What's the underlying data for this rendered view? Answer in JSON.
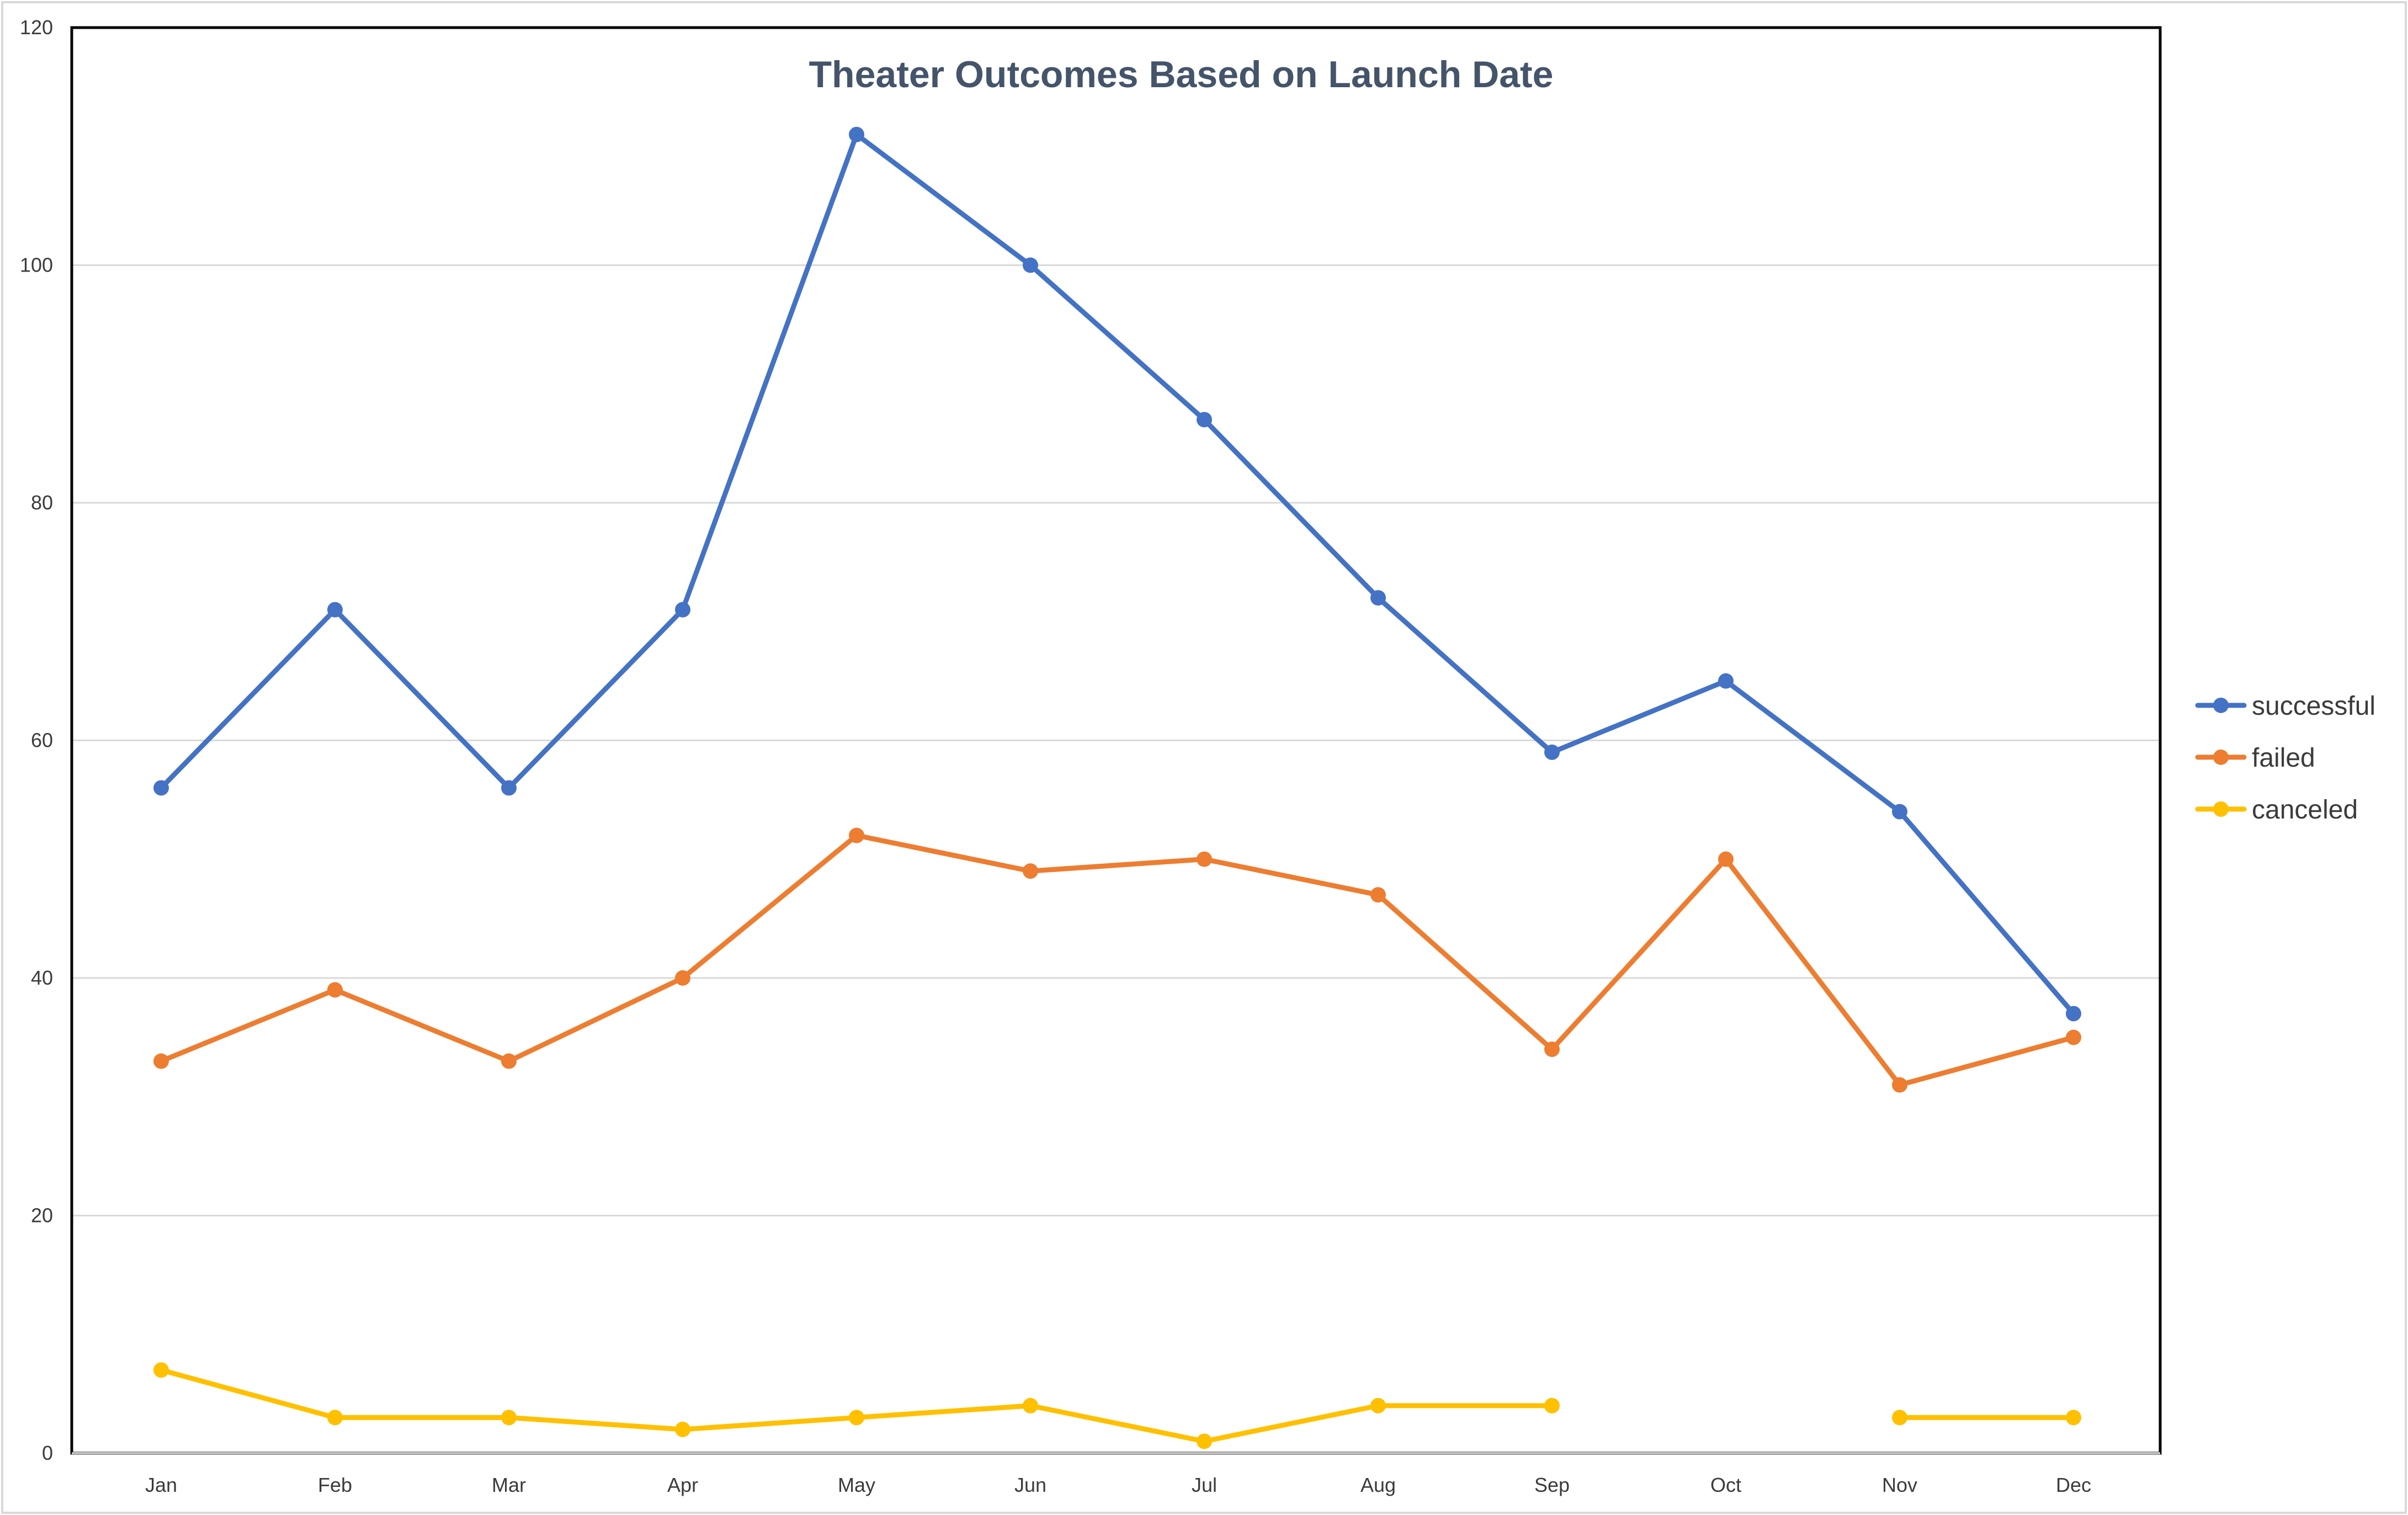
{
  "chart_data": {
    "type": "line",
    "title": "Theater Outcomes Based on Launch Date",
    "xlabel": "",
    "ylabel": "",
    "categories": [
      "Jan",
      "Feb",
      "Mar",
      "Apr",
      "May",
      "Jun",
      "Jul",
      "Aug",
      "Sep",
      "Oct",
      "Nov",
      "Dec"
    ],
    "ylim": [
      0,
      120
    ],
    "yticks": [
      0,
      20,
      40,
      60,
      80,
      100,
      120
    ],
    "grid": true,
    "legend_position": "right",
    "series": [
      {
        "name": "successful",
        "color": "#4472c4",
        "values": [
          56,
          71,
          56,
          71,
          111,
          100,
          87,
          72,
          59,
          65,
          54,
          37
        ]
      },
      {
        "name": "failed",
        "color": "#ed7d31",
        "values": [
          33,
          39,
          33,
          40,
          52,
          49,
          50,
          47,
          34,
          50,
          31,
          35
        ]
      },
      {
        "name": "canceled",
        "color": "#ffc000",
        "values": [
          7,
          3,
          3,
          2,
          3,
          4,
          1,
          4,
          4,
          null,
          3,
          3
        ]
      }
    ]
  }
}
